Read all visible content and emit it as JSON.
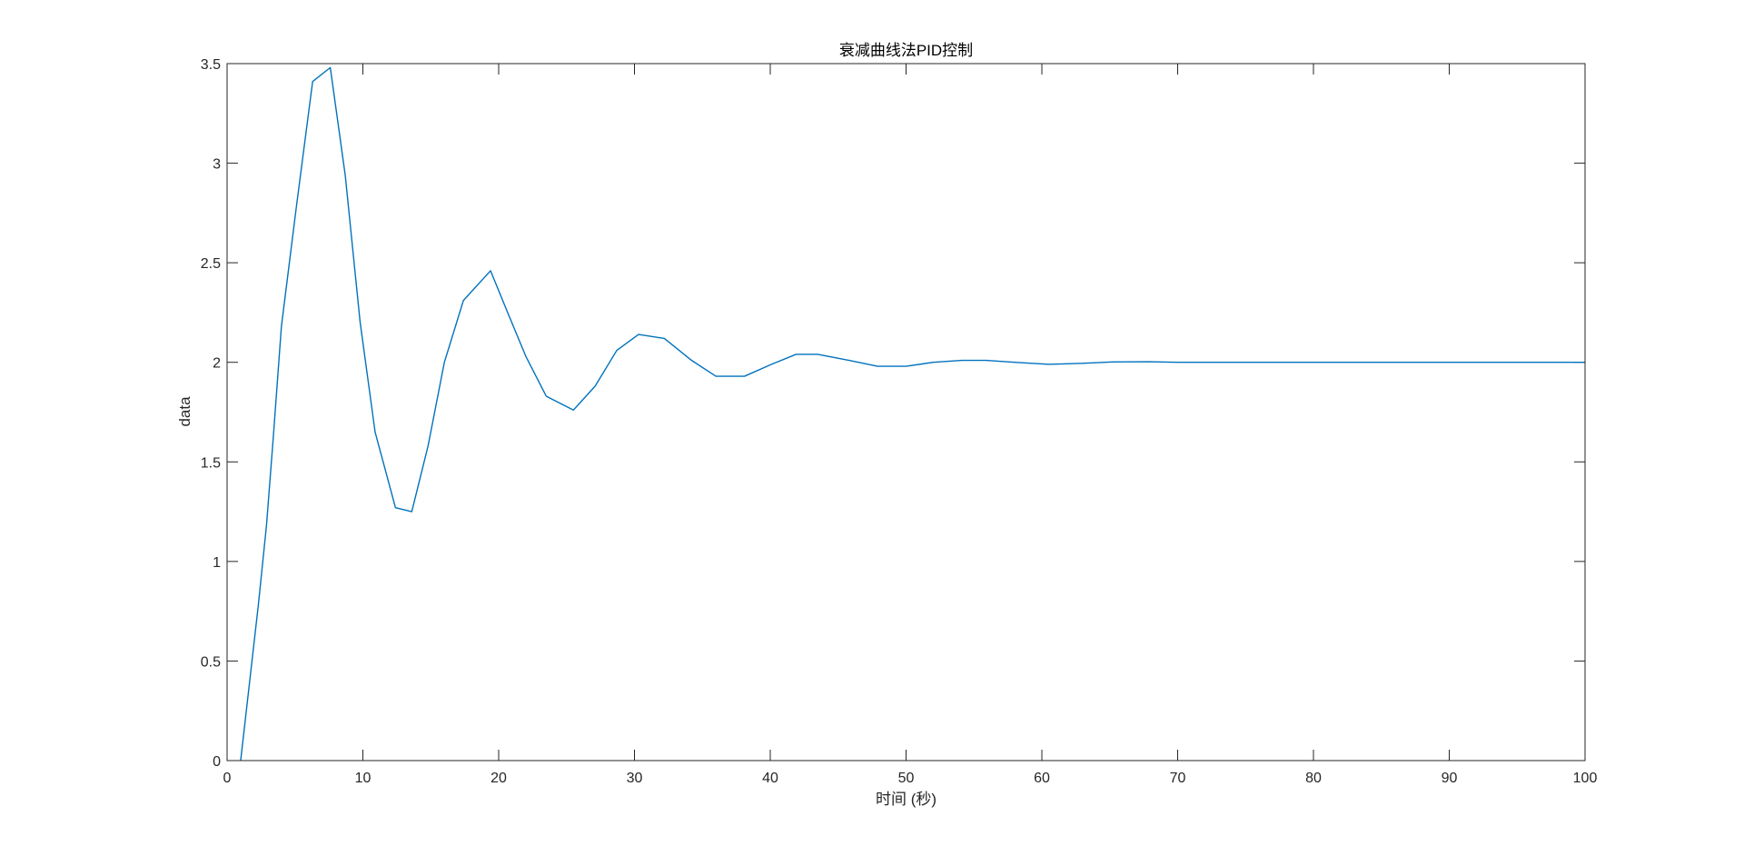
{
  "chart_data": {
    "type": "line",
    "title": "衰减曲线法PID控制",
    "xlabel": "时间 (秒)",
    "ylabel": "data",
    "xlim": [
      0,
      100
    ],
    "ylim": [
      0,
      3.5
    ],
    "xticks": [
      0,
      10,
      20,
      30,
      40,
      50,
      60,
      70,
      80,
      90,
      100
    ],
    "yticks": [
      0,
      0.5,
      1,
      1.5,
      2,
      2.5,
      3,
      3.5
    ],
    "xtick_labels": [
      "0",
      "10",
      "20",
      "30",
      "40",
      "50",
      "60",
      "70",
      "80",
      "90",
      "100"
    ],
    "ytick_labels": [
      "0",
      "0.5",
      "1",
      "1.5",
      "2",
      "2.5",
      "3",
      "3.5"
    ],
    "grid": false,
    "box": true,
    "line_color": "#0072BD",
    "series": [
      {
        "x": [
          1.0,
          1.7,
          2.3,
          2.9,
          3.4,
          4.0,
          5.1,
          6.3,
          7.6,
          8.7,
          9.8,
          10.9,
          12.4,
          13.6,
          14.8,
          16.0,
          17.4,
          19.4,
          20.6,
          22.0,
          23.5,
          25.5,
          27.1,
          28.7,
          30.3,
          32.2,
          34.2,
          36.0,
          38.1,
          40.1,
          41.9,
          43.5,
          45.8,
          47.9,
          50.0,
          52.0,
          54.1,
          55.9,
          58.0,
          60.5,
          63.0,
          65.2,
          67.9,
          70.0,
          75.0,
          80.0,
          90.0,
          100.0
        ],
        "y": [
          0.0,
          0.42,
          0.78,
          1.18,
          1.62,
          2.18,
          2.78,
          3.41,
          3.48,
          2.94,
          2.2,
          1.65,
          1.27,
          1.25,
          1.58,
          2.0,
          2.31,
          2.46,
          2.26,
          2.03,
          1.83,
          1.76,
          1.88,
          2.06,
          2.14,
          2.12,
          2.01,
          1.93,
          1.93,
          1.99,
          2.04,
          2.04,
          2.01,
          1.98,
          1.98,
          2.0,
          2.01,
          2.01,
          2.0,
          1.99,
          1.995,
          2.002,
          2.003,
          2.0,
          2.0,
          2.0,
          2.0,
          2.0
        ]
      }
    ]
  }
}
